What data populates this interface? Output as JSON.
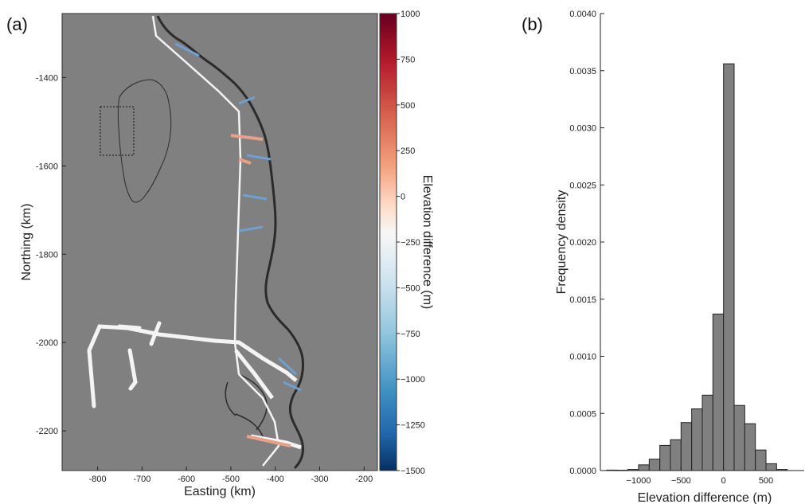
{
  "panel_a": {
    "label": "(a)",
    "xlabel": "Easting (km)",
    "ylabel": "Northing (km)",
    "x_ticks": [
      "-800",
      "-700",
      "-600",
      "-500",
      "-400",
      "-300",
      "-200"
    ],
    "y_ticks": [
      "-1400",
      "-1600",
      "-1800",
      "-2000",
      "-2200"
    ],
    "colorbar": {
      "label": "Elevation difference (m)",
      "ticks": [
        "1000",
        "750",
        "500",
        "250",
        "0",
        "−250",
        "−500",
        "−750",
        "−1000",
        "−1250",
        "−1500"
      ]
    },
    "colors": {
      "background": "#808080",
      "coast": "#2b2b2b",
      "track": "#f4f4f4"
    }
  },
  "chart_data": {
    "type": "bar",
    "panel_label": "(b)",
    "xlabel": "Elevation difference (m)",
    "ylabel": "Frequency density",
    "x_ticks": [
      "−1000",
      "−500",
      "0",
      "500"
    ],
    "y_ticks": [
      "0.0000",
      "0.0005",
      "0.0010",
      "0.0015",
      "0.0020",
      "0.0025",
      "0.0030",
      "0.0035",
      "0.0040"
    ],
    "xlim": [
      -1450,
      950
    ],
    "ylim": [
      0,
      0.004
    ],
    "bin_width": 125,
    "bin_starts": [
      -1375,
      -1250,
      -1125,
      -1000,
      -875,
      -750,
      -625,
      -500,
      -375,
      -250,
      -125,
      0,
      125,
      250,
      375,
      500,
      625
    ],
    "values": [
      4e-06,
      3e-06,
      1e-05,
      5e-05,
      0.0001,
      0.00022,
      0.00027,
      0.00042,
      0.00054,
      0.00066,
      0.00137,
      0.00356,
      0.00057,
      0.00041,
      0.00018,
      6e-05,
      1e-05
    ],
    "bar_color": "#808080",
    "grid": false
  }
}
